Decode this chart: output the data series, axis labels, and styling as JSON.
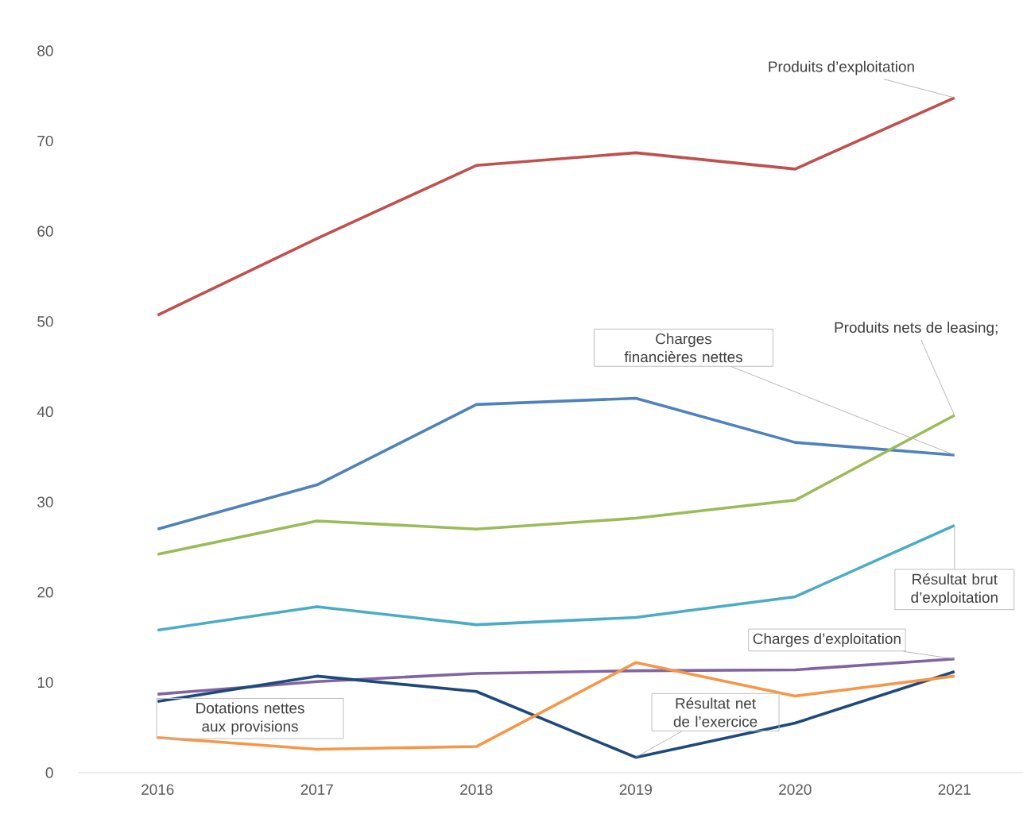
{
  "chart_data": {
    "type": "line",
    "categories": [
      "2016",
      "2017",
      "2018",
      "2019",
      "2020",
      "2021"
    ],
    "ylim": [
      0,
      80
    ],
    "yticks": [
      0,
      10,
      20,
      30,
      40,
      50,
      60,
      70,
      80
    ],
    "series": [
      {
        "name": "Produits d’exploitation",
        "color": "#c0504d",
        "values": [
          50.7,
          59.2,
          67.3,
          68.7,
          66.9,
          74.8
        ]
      },
      {
        "name": "Charges financières nettes",
        "color": "#4f81bd",
        "values": [
          27.0,
          31.9,
          40.8,
          41.5,
          36.6,
          35.2
        ]
      },
      {
        "name": "Produits nets de leasing;",
        "color": "#9bbb59",
        "values": [
          24.2,
          27.9,
          27.0,
          28.2,
          30.2,
          39.6
        ]
      },
      {
        "name": "Résultat brut d’exploitation",
        "color": "#4bacc6",
        "values": [
          15.8,
          18.4,
          16.4,
          17.2,
          19.5,
          27.4
        ]
      },
      {
        "name": "Charges d’exploitation",
        "color": "#8064a2",
        "values": [
          8.7,
          10.1,
          11.0,
          11.3,
          11.4,
          12.6
        ]
      },
      {
        "name": "Résultat net de l’exercice",
        "color": "#1f497d",
        "values": [
          7.9,
          10.7,
          9.0,
          1.7,
          5.5,
          11.2
        ]
      },
      {
        "name": "Dotations nettes aux provisions",
        "color": "#f79646",
        "values": [
          3.9,
          2.6,
          2.9,
          12.2,
          8.5,
          10.7
        ]
      }
    ]
  }
}
